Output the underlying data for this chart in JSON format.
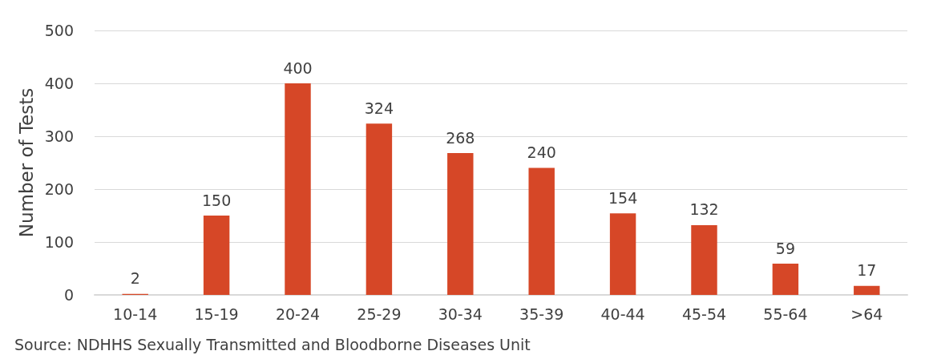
{
  "chart_data": {
    "type": "bar",
    "ylabel": "Number of Tests",
    "categories": [
      "10-14",
      "15-19",
      "20-24",
      "25-29",
      "30-34",
      "35-39",
      "40-44",
      "45-54",
      "55-64",
      ">64"
    ],
    "values": [
      2,
      150,
      400,
      324,
      268,
      240,
      154,
      132,
      59,
      17
    ],
    "color": "#d64727",
    "data_labels": true,
    "ylim": [
      0,
      500
    ],
    "yticks": [
      0,
      100,
      200,
      300,
      400,
      500
    ],
    "grid": "y",
    "annotations": [
      "Source: NDHHS Sexually Transmitted and Bloodborne Diseases Unit"
    ]
  }
}
